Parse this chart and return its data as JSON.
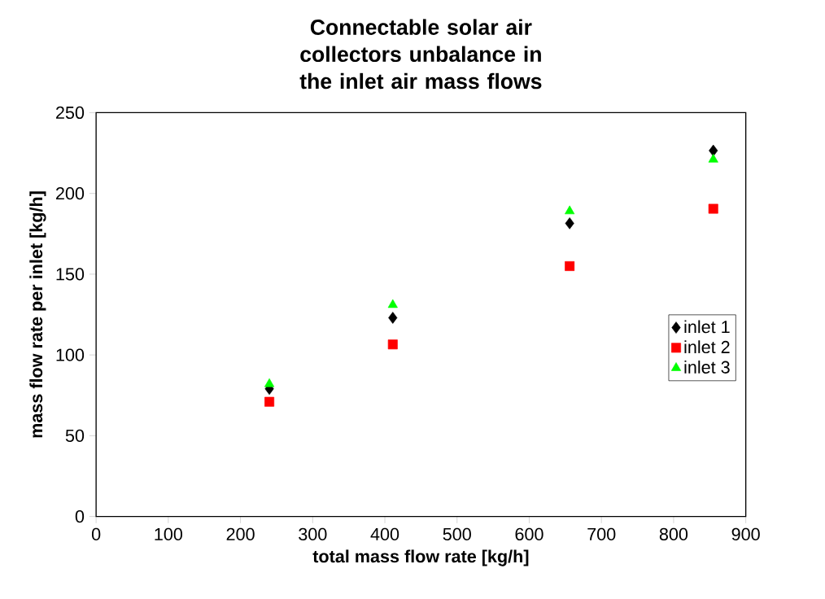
{
  "chart_data": {
    "type": "scatter",
    "title": "Connectable solar air collectors unbalance in the inlet air mass flows",
    "xlabel": "total mass flow rate [kg/h]",
    "ylabel": "mass flow rate per inlet [kg/h]",
    "x": [
      240,
      411,
      656,
      855
    ],
    "series": [
      {
        "name": "inlet 1",
        "color": "#000000",
        "marker": "diamond",
        "values": [
          79,
          123,
          181.5,
          226.5
        ]
      },
      {
        "name": "inlet 2",
        "color": "#ff0000",
        "marker": "square",
        "values": [
          71,
          106.5,
          155,
          190.5
        ]
      },
      {
        "name": "inlet 3",
        "color": "#00ff00",
        "marker": "triangle",
        "values": [
          82,
          131,
          189,
          221
        ]
      }
    ],
    "xlim": [
      0,
      900
    ],
    "ylim": [
      0,
      250
    ],
    "xticks": [
      0,
      100,
      200,
      300,
      400,
      500,
      600,
      700,
      800,
      900
    ],
    "yticks": [
      0,
      50,
      100,
      150,
      200,
      250
    ],
    "grid": false,
    "legend": "right"
  }
}
